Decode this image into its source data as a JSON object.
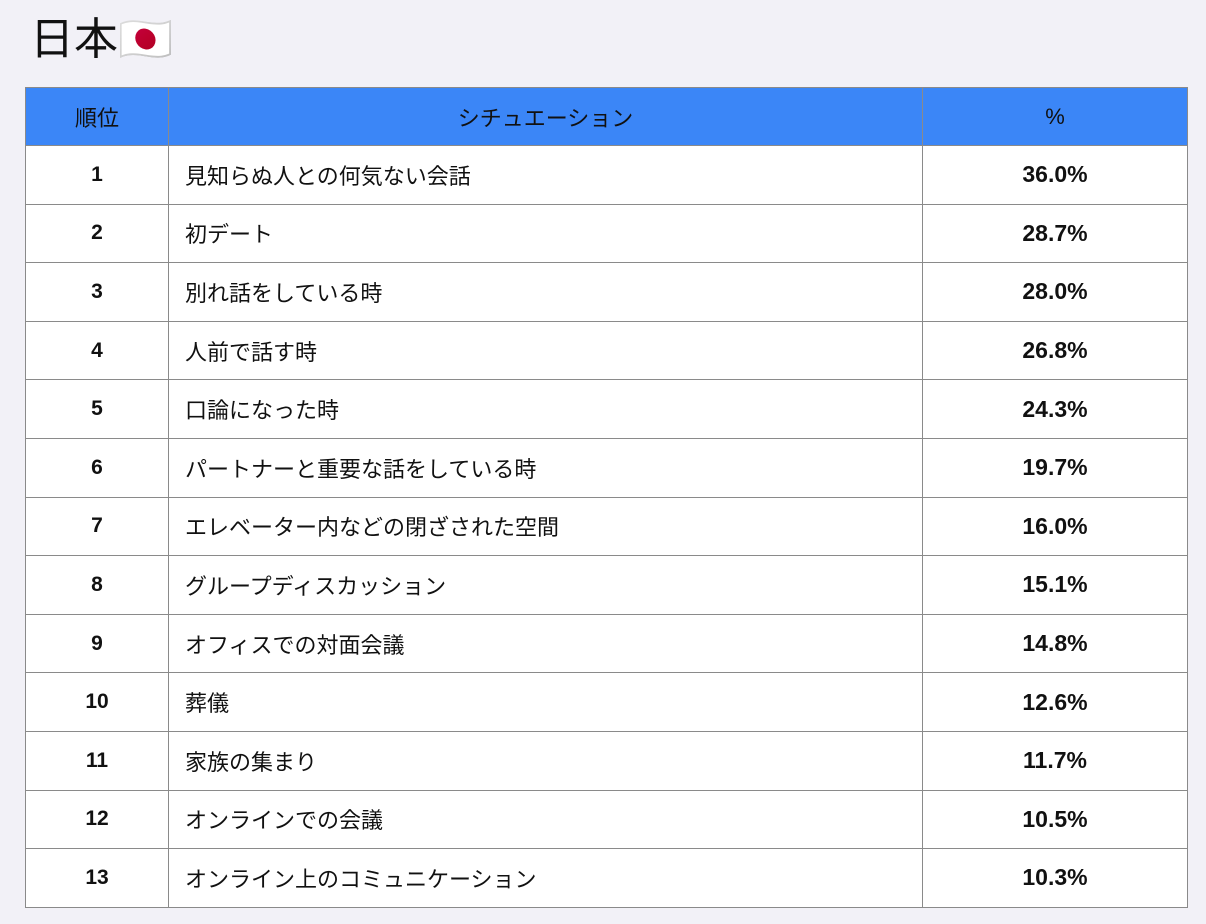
{
  "header": {
    "title": "日本🇯🇵"
  },
  "table": {
    "columns": [
      "順位",
      "シチュエーション",
      "%"
    ],
    "rows": [
      [
        "1",
        "見知らぬ人との何気ない会話",
        "36.0%"
      ],
      [
        "2",
        "初デート",
        "28.7%"
      ],
      [
        "3",
        "別れ話をしている時",
        "28.0%"
      ],
      [
        "4",
        "人前で話す時",
        "26.8%"
      ],
      [
        "5",
        "口論になった時",
        "24.3%"
      ],
      [
        "6",
        "パートナーと重要な話をしている時",
        "19.7%"
      ],
      [
        "7",
        "エレベーター内などの閉ざされた空間",
        "16.0%"
      ],
      [
        "8",
        "グループディスカッション",
        "15.1%"
      ],
      [
        "9",
        "オフィスでの対面会議",
        "14.8%"
      ],
      [
        "10",
        "葬儀",
        "12.6%"
      ],
      [
        "11",
        "家族の集まり",
        "11.7%"
      ],
      [
        "12",
        "オンラインでの会議",
        "10.5%"
      ],
      [
        "13",
        "オンライン上のコミュニケーション",
        "10.3%"
      ]
    ]
  }
}
